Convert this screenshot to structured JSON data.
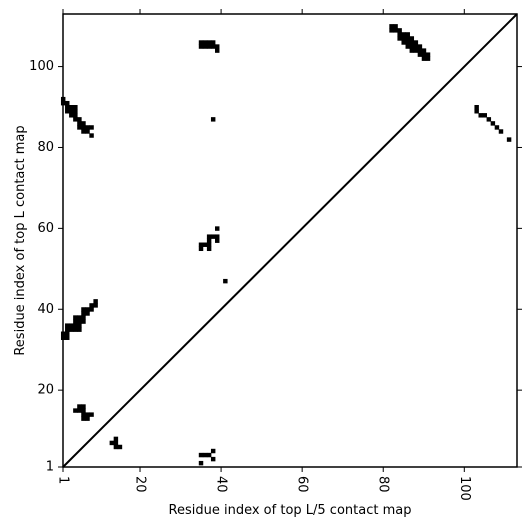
{
  "chart_data": {
    "type": "scatter",
    "title": "",
    "xlabel": "Residue index of top L/5 contact map",
    "ylabel": "Residue index of top L contact map",
    "xlim": [
      1,
      113
    ],
    "ylim": [
      1,
      113
    ],
    "xticks": [
      1,
      20,
      40,
      60,
      80,
      100
    ],
    "yticks": [
      1,
      20,
      40,
      60,
      80,
      100
    ],
    "xtick_rotation": 90,
    "diagonal": true,
    "grid": false,
    "marker_color": "#000000",
    "series": [
      {
        "points": [
          [
            1,
            92
          ],
          [
            1,
            91
          ],
          [
            2,
            91
          ],
          [
            2,
            90
          ],
          [
            3,
            90
          ],
          [
            4,
            90
          ],
          [
            2,
            89
          ],
          [
            3,
            89
          ],
          [
            4,
            89
          ],
          [
            3,
            88
          ],
          [
            4,
            88
          ],
          [
            4,
            87
          ],
          [
            5,
            87
          ],
          [
            5,
            86
          ],
          [
            6,
            86
          ],
          [
            5,
            85
          ],
          [
            6,
            85
          ],
          [
            7,
            85
          ],
          [
            8,
            85
          ],
          [
            6,
            84
          ],
          [
            7,
            84
          ],
          [
            8,
            83
          ],
          [
            1,
            34
          ],
          [
            2,
            34
          ],
          [
            1,
            33
          ],
          [
            2,
            33
          ],
          [
            2,
            35
          ],
          [
            3,
            35
          ],
          [
            4,
            35
          ],
          [
            5,
            35
          ],
          [
            2,
            36
          ],
          [
            3,
            36
          ],
          [
            4,
            36
          ],
          [
            5,
            36
          ],
          [
            4,
            37
          ],
          [
            5,
            37
          ],
          [
            6,
            37
          ],
          [
            4,
            38
          ],
          [
            5,
            38
          ],
          [
            6,
            38
          ],
          [
            6,
            39
          ],
          [
            7,
            39
          ],
          [
            6,
            40
          ],
          [
            7,
            40
          ],
          [
            8,
            40
          ],
          [
            8,
            41
          ],
          [
            9,
            41
          ],
          [
            9,
            42
          ],
          [
            4,
            15
          ],
          [
            5,
            15
          ],
          [
            6,
            15
          ],
          [
            5,
            16
          ],
          [
            6,
            16
          ],
          [
            6,
            14
          ],
          [
            7,
            14
          ],
          [
            8,
            14
          ],
          [
            6,
            13
          ],
          [
            7,
            13
          ],
          [
            13,
            7
          ],
          [
            14,
            7
          ],
          [
            14,
            6
          ],
          [
            15,
            6
          ],
          [
            14,
            8
          ],
          [
            35,
            56
          ],
          [
            36,
            56
          ],
          [
            35,
            55
          ],
          [
            37,
            55
          ],
          [
            37,
            56
          ],
          [
            37,
            57
          ],
          [
            37,
            58
          ],
          [
            38,
            58
          ],
          [
            39,
            58
          ],
          [
            39,
            57
          ],
          [
            39,
            60
          ],
          [
            41,
            47
          ],
          [
            38,
            87
          ],
          [
            35,
            106
          ],
          [
            36,
            106
          ],
          [
            37,
            106
          ],
          [
            38,
            106
          ],
          [
            35,
            105
          ],
          [
            36,
            105
          ],
          [
            37,
            105
          ],
          [
            38,
            105
          ],
          [
            39,
            105
          ],
          [
            39,
            104
          ],
          [
            35,
            4
          ],
          [
            36,
            4
          ],
          [
            37,
            4
          ],
          [
            38,
            5
          ],
          [
            38,
            3
          ],
          [
            35,
            2
          ],
          [
            82,
            110
          ],
          [
            83,
            110
          ],
          [
            82,
            109
          ],
          [
            83,
            109
          ],
          [
            84,
            109
          ],
          [
            84,
            108
          ],
          [
            85,
            108
          ],
          [
            86,
            108
          ],
          [
            84,
            107
          ],
          [
            85,
            107
          ],
          [
            86,
            107
          ],
          [
            87,
            107
          ],
          [
            85,
            106
          ],
          [
            86,
            106
          ],
          [
            87,
            106
          ],
          [
            88,
            106
          ],
          [
            86,
            105
          ],
          [
            87,
            105
          ],
          [
            88,
            105
          ],
          [
            89,
            105
          ],
          [
            87,
            104
          ],
          [
            88,
            104
          ],
          [
            89,
            104
          ],
          [
            90,
            104
          ],
          [
            89,
            103
          ],
          [
            90,
            103
          ],
          [
            91,
            103
          ],
          [
            90,
            102
          ],
          [
            91,
            102
          ],
          [
            103,
            90
          ],
          [
            103,
            89
          ],
          [
            104,
            88
          ],
          [
            105,
            88
          ],
          [
            106,
            87
          ],
          [
            107,
            86
          ],
          [
            108,
            85
          ],
          [
            109,
            84
          ],
          [
            111,
            82
          ]
        ]
      }
    ]
  }
}
